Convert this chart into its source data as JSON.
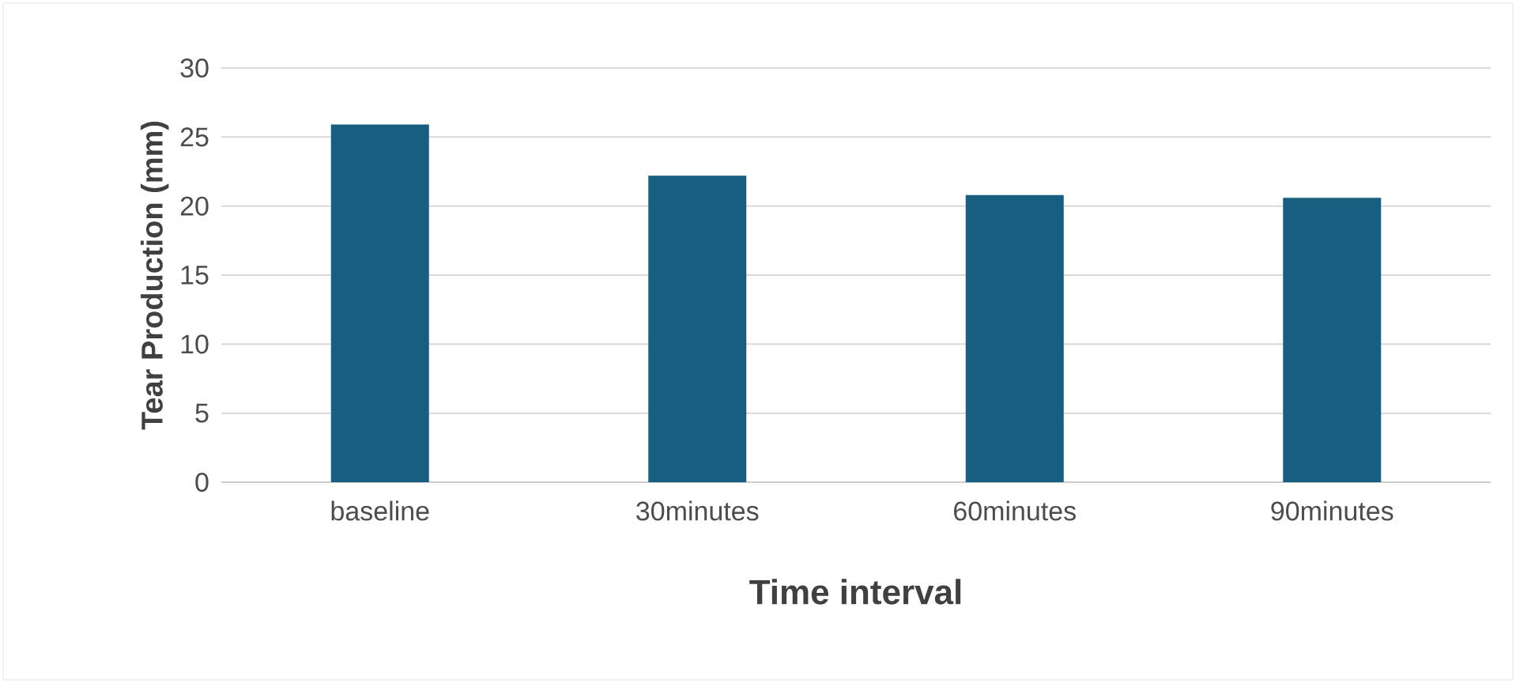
{
  "chart_data": {
    "type": "bar",
    "xlabel": "Time interval",
    "ylabel": "Tear Production (mm)",
    "categories": [
      "baseline",
      "30minutes",
      "60minutes",
      "90minutes"
    ],
    "values": [
      25.9,
      22.2,
      20.8,
      20.6
    ],
    "color": "#175e80",
    "ylim": [
      0,
      30
    ],
    "yticks": [
      0,
      5,
      10,
      15,
      20,
      25,
      30
    ],
    "grid": "y"
  }
}
